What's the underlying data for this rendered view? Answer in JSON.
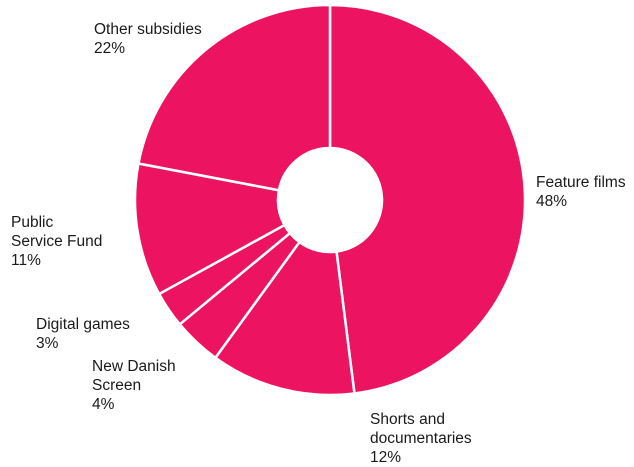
{
  "chart_data": {
    "type": "pie",
    "donut": true,
    "color": "#ec1460",
    "separator_color": "#ffffff",
    "slices": [
      {
        "label": "Feature films",
        "value": 48,
        "pct": "48%"
      },
      {
        "label": "Shorts and documentaries",
        "value": 12,
        "pct": "12%"
      },
      {
        "label": "New Danish Screen",
        "value": 4,
        "pct": "4%"
      },
      {
        "label": "Digital games",
        "value": 3,
        "pct": "3%"
      },
      {
        "label": "Public Service Fund",
        "value": 11,
        "pct": "11%"
      },
      {
        "label": "Other subsidies",
        "value": 22,
        "pct": "22%"
      }
    ]
  },
  "labels": {
    "feature": {
      "line1": "Feature films",
      "pct": "48%"
    },
    "shorts": {
      "line1": "Shorts and",
      "line2": "documentaries",
      "pct": "12%"
    },
    "newdanish": {
      "line1": "New Danish",
      "line2": "Screen",
      "pct": "4%"
    },
    "digital": {
      "line1": "Digital games",
      "pct": "3%"
    },
    "public": {
      "line1": "Public",
      "line2": "Service Fund",
      "pct": "11%"
    },
    "other": {
      "line1": "Other subsidies",
      "pct": "22%"
    }
  }
}
